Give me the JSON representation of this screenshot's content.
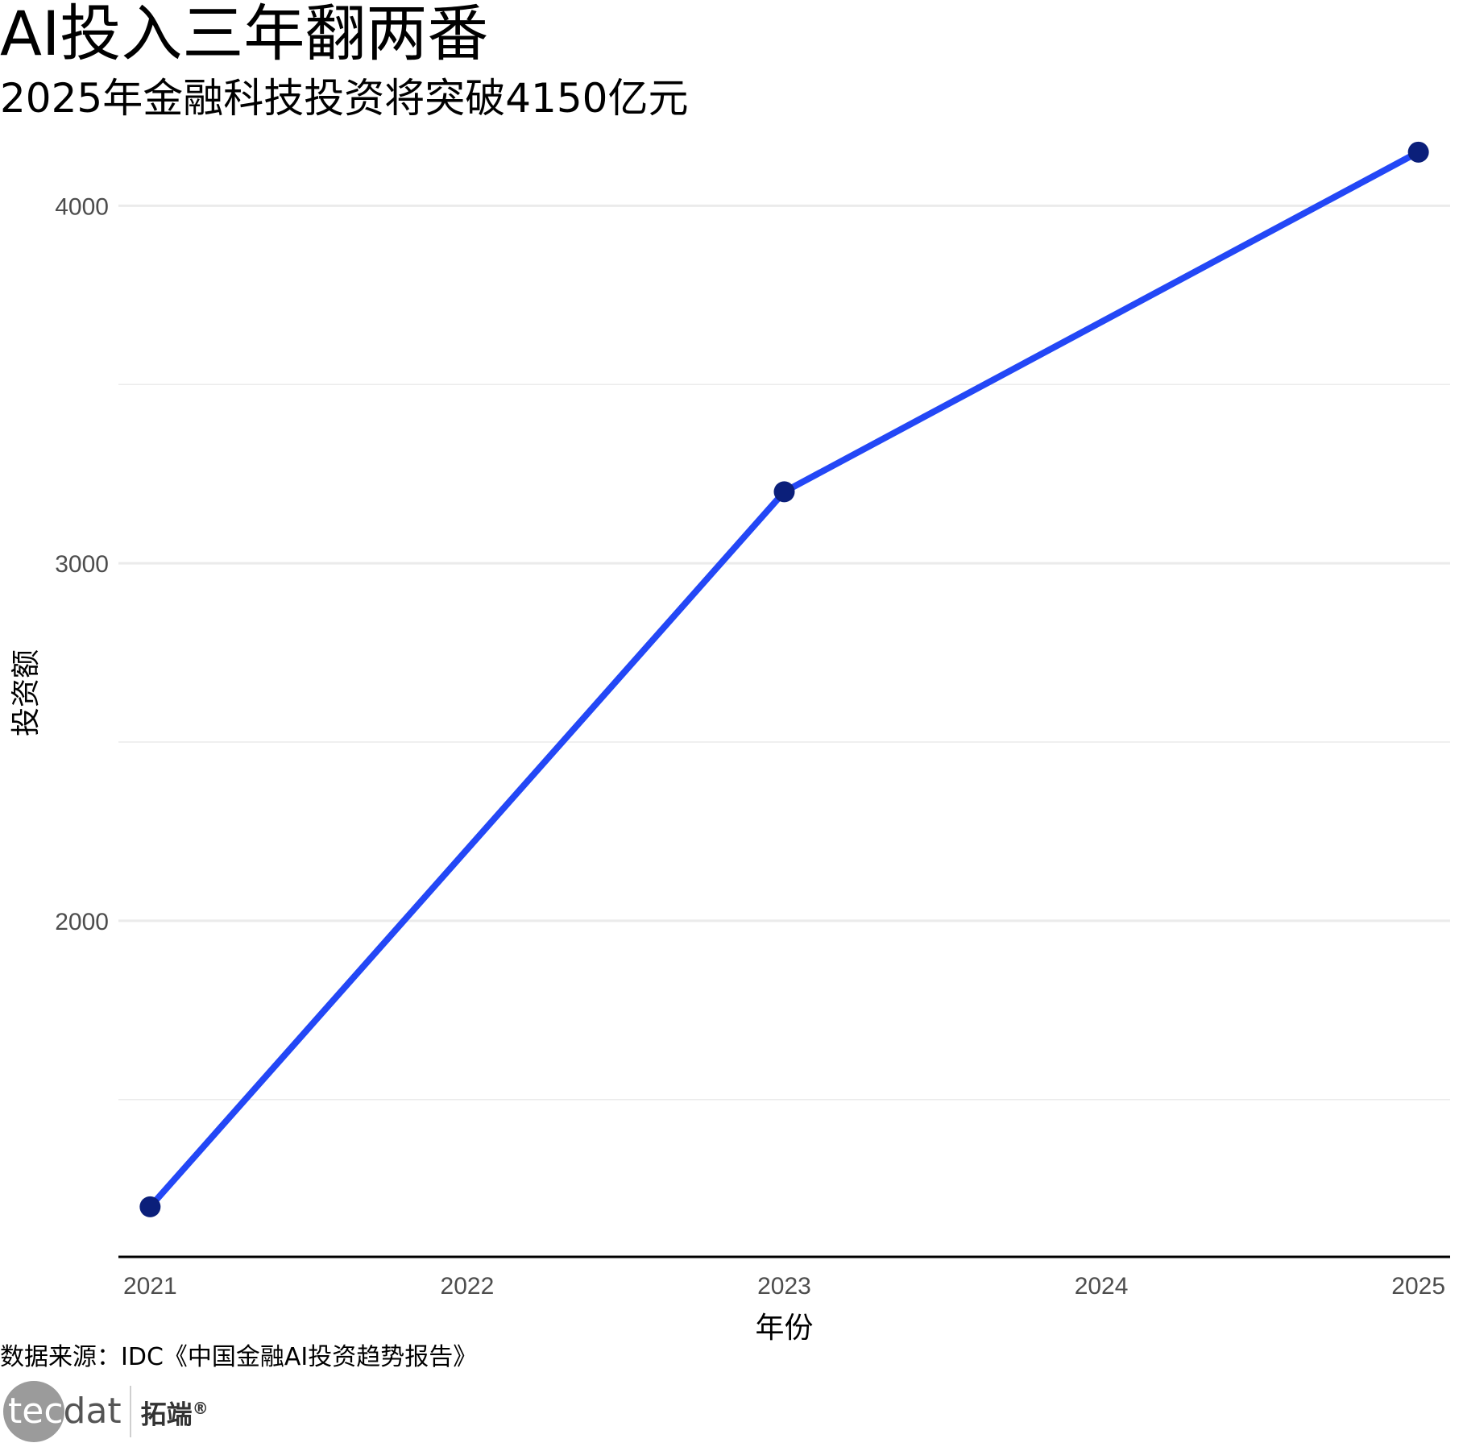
{
  "title": "AI投入三年翻两番",
  "subtitle": "2025年金融科技投资将突破4150亿元",
  "caption": "数据来源：IDC《中国金融AI投资趋势报告》",
  "logo": {
    "tec": "tec",
    "dat": "dat",
    "cn": "拓端",
    "reg": "®"
  },
  "colors": {
    "line": "#2347f6",
    "point": "#0b1f7a",
    "grid": "#ebebeb",
    "axis": "#000000",
    "tick_text": "#4d4d4d"
  },
  "chart_data": {
    "type": "line",
    "title": "AI投入三年翻两番",
    "subtitle": "2025年金融科技投资将突破4150亿元",
    "xlabel": "年份",
    "ylabel": "投资额",
    "x": [
      2021,
      2023,
      2025
    ],
    "series": [
      {
        "values": [
          1200,
          3200,
          4150
        ]
      }
    ],
    "x_ticks": [
      "2021",
      "2022",
      "2023",
      "2024",
      "2025"
    ],
    "y_ticks": [
      "2000",
      "3000",
      "4000"
    ],
    "xlim": [
      2020.9,
      2025.1
    ],
    "ylim": [
      1060,
      4260
    ],
    "grid": true,
    "legend": "none"
  }
}
